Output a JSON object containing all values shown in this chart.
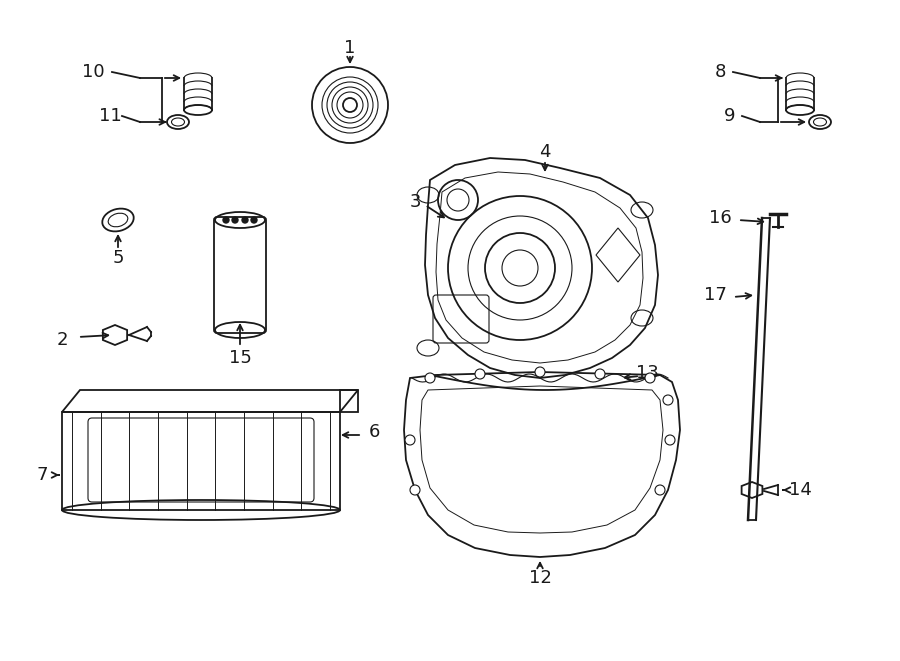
{
  "bg_color": "#ffffff",
  "line_color": "#1a1a1a",
  "fig_width": 9.0,
  "fig_height": 6.61,
  "dpi": 100,
  "font_size": 13,
  "lw": 1.3
}
